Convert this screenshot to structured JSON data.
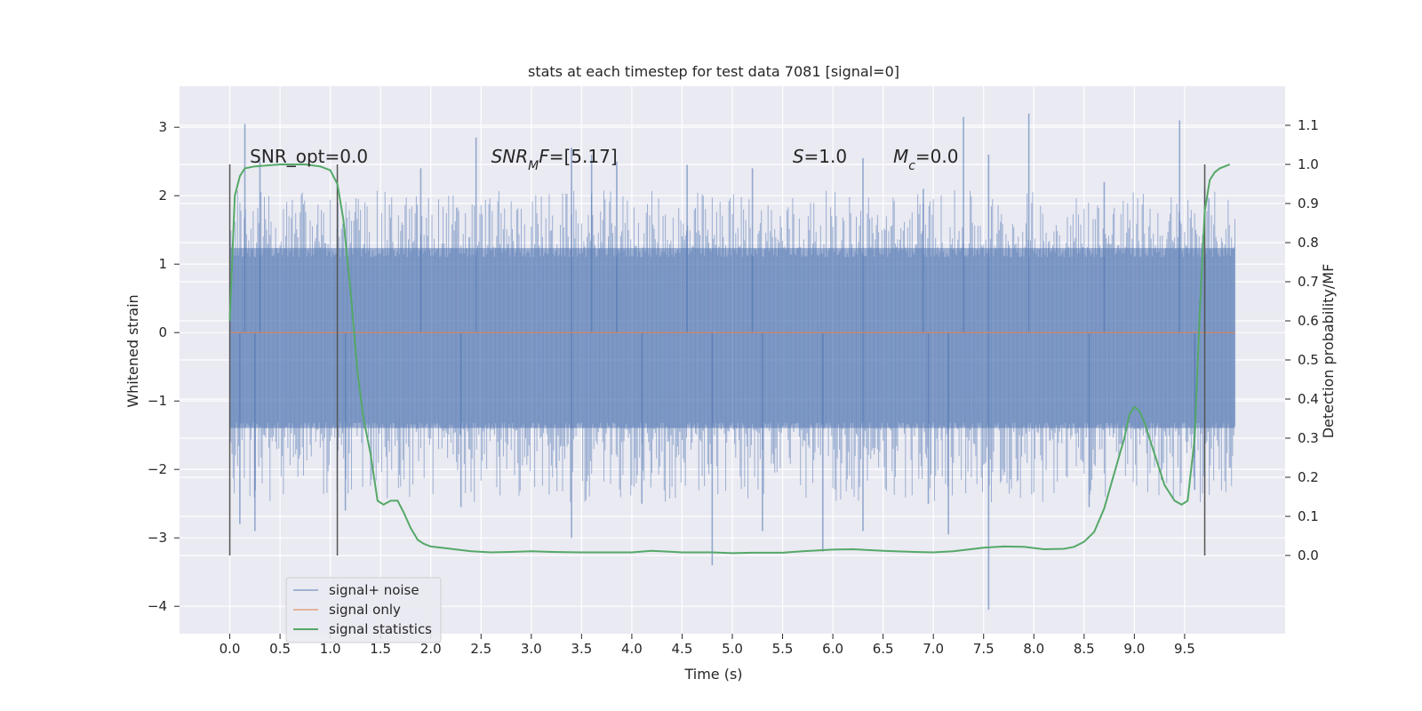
{
  "chart_data": {
    "type": "line",
    "title": "stats at each timestep for test data 7081 [signal=0]",
    "xlabel": "Time (s)",
    "ylabel": "Whitened strain",
    "y2label": "Detection probability/MF",
    "xlim": [
      -0.5,
      10.5
    ],
    "ylim": [
      -4.4,
      3.6
    ],
    "y2lim": [
      -0.2,
      1.2
    ],
    "x_ticks": [
      0.0,
      0.5,
      1.0,
      1.5,
      2.0,
      2.5,
      3.0,
      3.5,
      4.0,
      4.5,
      5.0,
      5.5,
      6.0,
      6.5,
      7.0,
      7.5,
      8.0,
      8.5,
      9.0,
      9.5
    ],
    "y_ticks": [
      -4,
      -3,
      -2,
      -1,
      0,
      1,
      2,
      3
    ],
    "y_tick_labels": [
      "−4",
      "−3",
      "−2",
      "−1",
      "0",
      "1",
      "2",
      "3"
    ],
    "y2_ticks": [
      0.0,
      0.1,
      0.2,
      0.3,
      0.4,
      0.5,
      0.6,
      0.7,
      0.8,
      0.9,
      1.0,
      1.1
    ],
    "grid": true,
    "legend_position": "lower-left",
    "colors": {
      "background": "#eaeaf2",
      "grid": "#ffffff",
      "noise": "#4c72b0",
      "signal_only": "#dd8452",
      "statistics": "#55a868",
      "markers": "#555555"
    },
    "annotations": [
      {
        "x": 0.2,
        "parts": [
          {
            "text": "SNR_opt=0.0",
            "italic": false
          }
        ]
      },
      {
        "x": 2.6,
        "parts": [
          {
            "text": "SNR",
            "italic": true
          },
          {
            "text": "M",
            "italic": true,
            "sub": true
          },
          {
            "text": "F",
            "italic": true
          },
          {
            "text": "=[5.17]",
            "italic": false
          }
        ]
      },
      {
        "x": 5.6,
        "parts": [
          {
            "text": "S",
            "italic": true
          },
          {
            "text": "=1.0",
            "italic": false
          }
        ]
      },
      {
        "x": 6.6,
        "parts": [
          {
            "text": "M",
            "italic": true
          },
          {
            "text": "c",
            "italic": true,
            "sub": true
          },
          {
            "text": "=0.0",
            "italic": false
          }
        ]
      }
    ],
    "vertical_markers": [
      0.0,
      1.07,
      9.7
    ],
    "series": [
      {
        "name": "signal+ noise",
        "kind": "noise-band",
        "x_range": [
          0.0,
          10.0
        ],
        "core_band": [
          -1.55,
          1.3
        ],
        "peaks_high": [
          [
            0.15,
            3.05
          ],
          [
            0.3,
            2.5
          ],
          [
            1.9,
            2.4
          ],
          [
            2.45,
            2.85
          ],
          [
            3.4,
            2.7
          ],
          [
            3.6,
            2.6
          ],
          [
            3.85,
            2.5
          ],
          [
            4.55,
            2.45
          ],
          [
            5.2,
            2.4
          ],
          [
            6.3,
            2.55
          ],
          [
            6.9,
            2.1
          ],
          [
            7.3,
            3.15
          ],
          [
            7.55,
            2.6
          ],
          [
            7.95,
            3.2
          ],
          [
            8.7,
            2.2
          ],
          [
            9.45,
            3.1
          ],
          [
            9.7,
            2.1
          ]
        ],
        "peaks_low": [
          [
            0.1,
            -2.8
          ],
          [
            0.25,
            -2.9
          ],
          [
            1.15,
            -2.6
          ],
          [
            2.3,
            -2.55
          ],
          [
            3.4,
            -3.0
          ],
          [
            4.1,
            -2.5
          ],
          [
            4.8,
            -3.4
          ],
          [
            5.3,
            -2.9
          ],
          [
            5.9,
            -3.2
          ],
          [
            6.3,
            -2.9
          ],
          [
            6.95,
            -2.5
          ],
          [
            7.15,
            -2.95
          ],
          [
            7.55,
            -4.05
          ],
          [
            8.55,
            -2.55
          ],
          [
            9.6,
            -2.3
          ]
        ]
      },
      {
        "name": "signal only",
        "kind": "line",
        "x": [
          0.0,
          10.0
        ],
        "y": [
          0.0,
          0.0
        ]
      },
      {
        "name": "signal statistics",
        "kind": "line",
        "axis": "right",
        "x": [
          0.0,
          0.05,
          0.1,
          0.15,
          0.25,
          0.5,
          0.75,
          0.9,
          1.0,
          1.07,
          1.13,
          1.2,
          1.27,
          1.33,
          1.4,
          1.47,
          1.53,
          1.6,
          1.67,
          1.73,
          1.8,
          1.87,
          1.93,
          2.0,
          2.2,
          2.4,
          2.6,
          2.8,
          3.0,
          3.2,
          3.5,
          4.0,
          4.2,
          4.5,
          4.8,
          5.0,
          5.2,
          5.5,
          5.7,
          6.0,
          6.2,
          6.5,
          6.8,
          7.0,
          7.2,
          7.5,
          7.7,
          7.9,
          8.1,
          8.3,
          8.4,
          8.5,
          8.6,
          8.7,
          8.8,
          8.9,
          8.95,
          9.0,
          9.05,
          9.1,
          9.2,
          9.3,
          9.4,
          9.47,
          9.53,
          9.6,
          9.65,
          9.7,
          9.75,
          9.8,
          9.85,
          9.9,
          9.95
        ],
        "y": [
          0.6,
          0.92,
          0.97,
          0.99,
          0.995,
          1.0,
          1.0,
          0.995,
          0.985,
          0.95,
          0.86,
          0.68,
          0.47,
          0.35,
          0.26,
          0.14,
          0.13,
          0.14,
          0.14,
          0.11,
          0.07,
          0.04,
          0.03,
          0.023,
          0.017,
          0.011,
          0.008,
          0.009,
          0.011,
          0.009,
          0.008,
          0.008,
          0.012,
          0.008,
          0.008,
          0.006,
          0.007,
          0.007,
          0.011,
          0.015,
          0.016,
          0.012,
          0.009,
          0.008,
          0.011,
          0.02,
          0.023,
          0.022,
          0.016,
          0.017,
          0.022,
          0.035,
          0.06,
          0.12,
          0.21,
          0.3,
          0.36,
          0.38,
          0.37,
          0.34,
          0.26,
          0.18,
          0.14,
          0.13,
          0.14,
          0.3,
          0.62,
          0.88,
          0.96,
          0.98,
          0.99,
          0.995,
          1.0
        ]
      }
    ]
  }
}
